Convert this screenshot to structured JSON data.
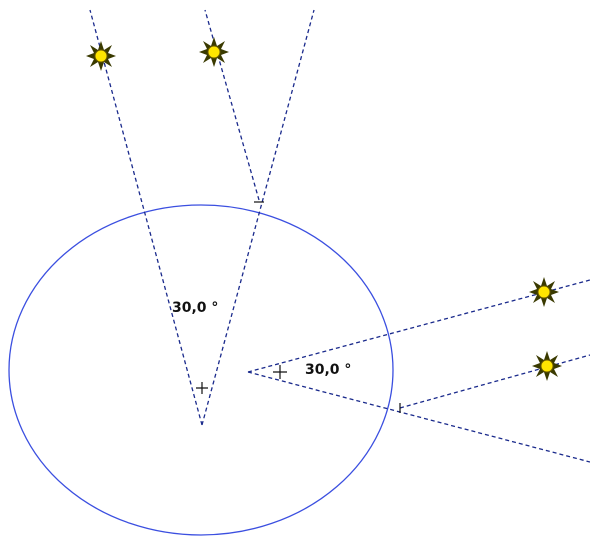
{
  "diagram": {
    "colors": {
      "circle": "#3b4fe0",
      "dashed_line": "#1a2a8c",
      "sun": "#ffe600",
      "text": "#111111"
    },
    "angles": [
      {
        "label": "30,0 °"
      },
      {
        "label": "30,0 °"
      }
    ],
    "icons": [
      "sun-icon",
      "sun-icon",
      "sun-icon",
      "sun-icon"
    ]
  }
}
